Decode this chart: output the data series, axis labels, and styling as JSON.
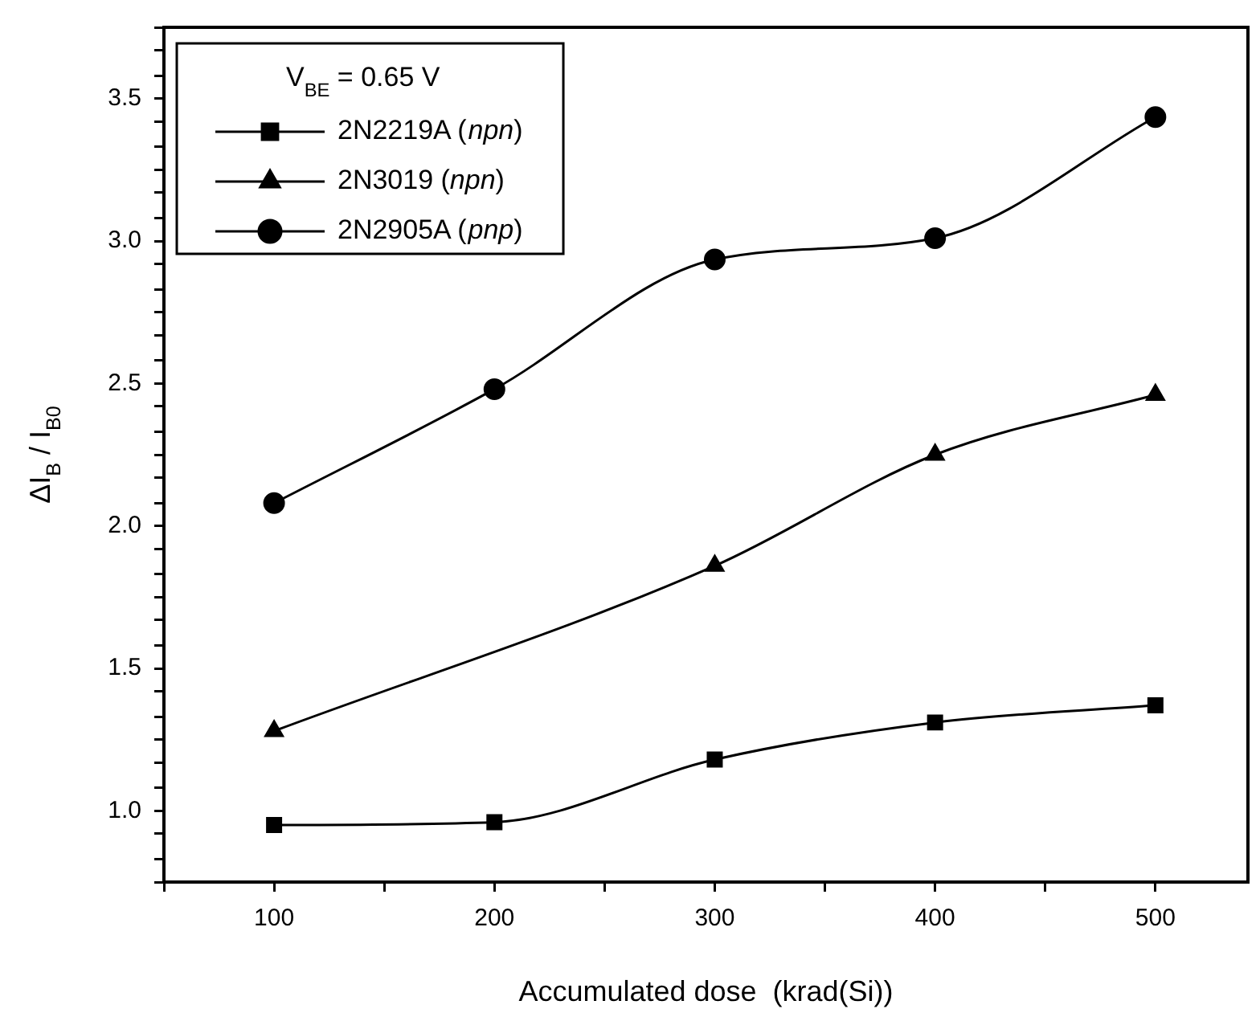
{
  "chart_data": {
    "type": "line",
    "xlabel": "Accumulated dose  (krad(Si))",
    "ylabel": "ΔI$_{B}$ / I$_{B0}$",
    "legend_title": "V$_{BE}$ = 0.65 V",
    "legend": "top left",
    "grid": false,
    "line_style": "solid",
    "x": [
      100,
      200,
      300,
      400,
      500
    ],
    "series": [
      {
        "name": "2N2219A (npn)",
        "color": "#000000",
        "marker": "square",
        "values": [
          0.95,
          0.96,
          1.18,
          1.31,
          1.37
        ]
      },
      {
        "name": "2N3019 (npn)",
        "color": "#000000",
        "marker": "triangle",
        "values": [
          1.28,
          null,
          1.86,
          2.25,
          2.46
        ]
      },
      {
        "name": "2N2905A (pnp)",
        "color": "#000000",
        "marker": "circle",
        "values": [
          2.08,
          2.48,
          2.935,
          3.01,
          3.435
        ]
      }
    ],
    "xlim": [
      50,
      542
    ],
    "xticks": [
      {
        "value": 50,
        "label": null
      },
      100,
      {
        "value": 150,
        "label": null
      },
      200,
      {
        "value": 250,
        "label": null
      },
      300,
      {
        "value": 350,
        "label": null
      },
      400,
      {
        "value": 450,
        "label": null
      },
      500
    ],
    "ylim": [
      0.75,
      3.75
    ],
    "yticks": [
      {
        "value": 0.75,
        "label": null
      },
      {
        "value": 0.83,
        "label": null
      },
      {
        "value": 0.92,
        "label": null
      },
      {
        "value": 1,
        "label": "1.0"
      },
      {
        "value": 1.08,
        "label": null
      },
      {
        "value": 1.17,
        "label": null
      },
      {
        "value": 1.25,
        "label": null
      },
      {
        "value": 1.33,
        "label": null
      },
      {
        "value": 1.42,
        "label": null
      },
      1.5,
      {
        "value": 1.58,
        "label": null
      },
      {
        "value": 1.67,
        "label": null
      },
      {
        "value": 1.75,
        "label": null
      },
      {
        "value": 1.83,
        "label": null
      },
      {
        "value": 1.92,
        "label": null
      },
      {
        "value": 2,
        "label": "2.0"
      },
      {
        "value": 2.08,
        "label": null
      },
      {
        "value": 2.17,
        "label": null
      },
      {
        "value": 2.25,
        "label": null
      },
      {
        "value": 2.33,
        "label": null
      },
      {
        "value": 2.42,
        "label": null
      },
      2.5,
      {
        "value": 2.58,
        "label": null
      },
      {
        "value": 2.67,
        "label": null
      },
      {
        "value": 2.75,
        "label": null
      },
      {
        "value": 2.83,
        "label": null
      },
      {
        "value": 2.92,
        "label": null
      },
      {
        "value": 3,
        "label": "3.0"
      },
      {
        "value": 3.08,
        "label": null
      },
      {
        "value": 3.17,
        "label": null
      },
      {
        "value": 3.25,
        "label": null
      },
      {
        "value": 3.33,
        "label": null
      },
      {
        "value": 3.42,
        "label": null
      },
      3.5,
      {
        "value": 3.58,
        "label": null
      },
      {
        "value": 3.67,
        "label": null
      },
      {
        "value": 3.75,
        "label": null
      }
    ]
  }
}
